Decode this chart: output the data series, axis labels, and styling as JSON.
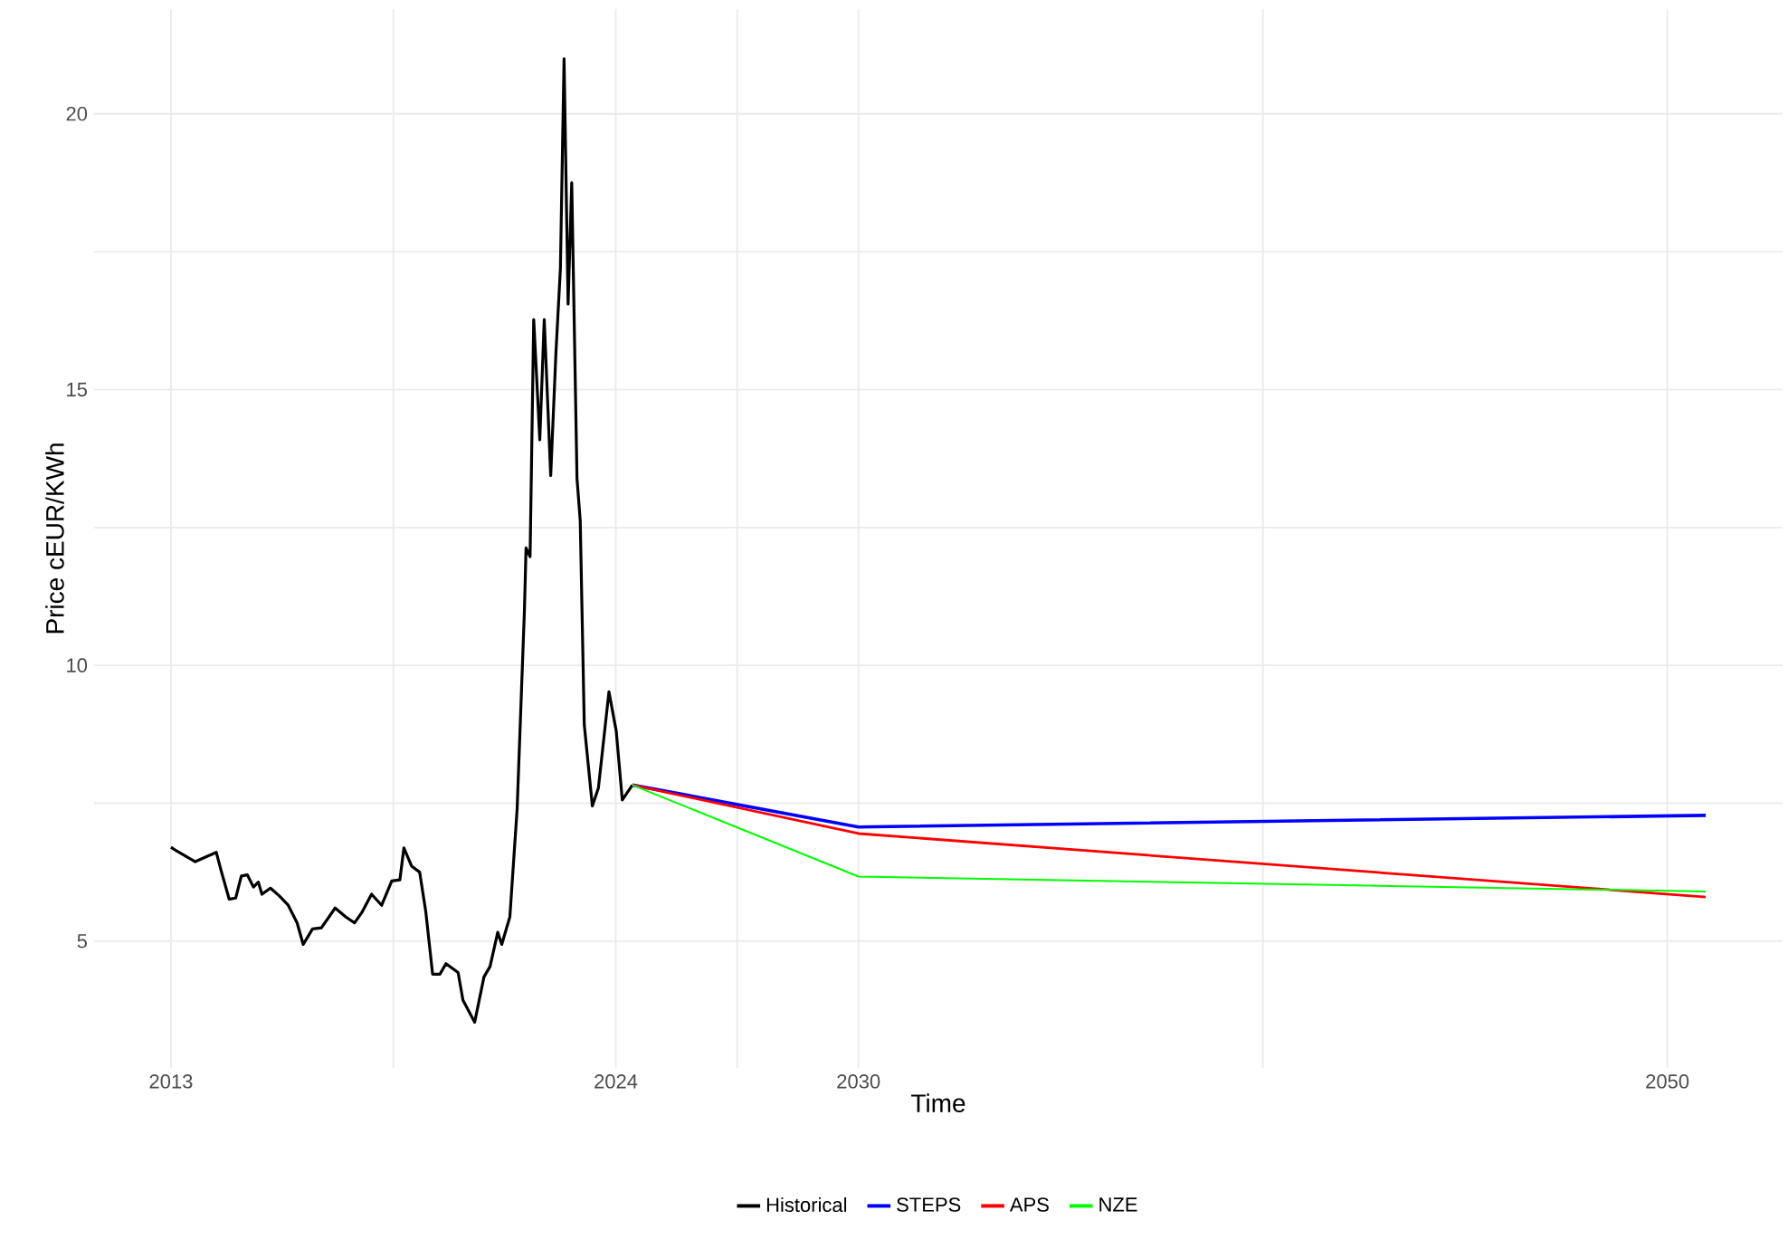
{
  "chart_data": {
    "type": "line",
    "xlabel": "Time",
    "ylabel": "Price cEUR/KWh",
    "xlim": [
      2011.1,
      2052.85
    ],
    "ylim": [
      2.7,
      21.9
    ],
    "xticks": [
      2013,
      {
        "value": 2018.5,
        "label": null
      },
      2024,
      {
        "value": 2027,
        "label": null
      },
      2030,
      {
        "value": 2040,
        "label": null
      },
      2050
    ],
    "yticks": [
      5,
      {
        "value": 7.5,
        "label": null
      },
      10,
      {
        "value": 12.5,
        "label": null
      },
      15,
      {
        "value": 17.5,
        "label": null
      },
      20
    ],
    "grid": true,
    "legend": "bottom",
    "line_style": "solid",
    "marker": "none",
    "series": [
      {
        "name": "Historical",
        "color": "#000000",
        "x": [
          2013.0,
          2013.15,
          2013.6,
          2014.12,
          2014.24,
          2014.44,
          2014.6,
          2014.74,
          2014.89,
          2015.04,
          2015.16,
          2015.25,
          2015.46,
          2015.68,
          2015.9,
          2016.12,
          2016.27,
          2016.5,
          2016.72,
          2017.06,
          2017.32,
          2017.54,
          2017.72,
          2017.96,
          2018.21,
          2018.46,
          2018.66,
          2018.76,
          2018.95,
          2019.15,
          2019.3,
          2019.47,
          2019.65,
          2019.8,
          2020.1,
          2020.22,
          2020.51,
          2020.74,
          2020.89,
          2021.08,
          2021.18,
          2021.38,
          2021.56,
          2021.74,
          2021.78,
          2021.88,
          2021.97,
          2022.12,
          2022.23,
          2022.39,
          2022.52,
          2022.63,
          2022.72,
          2022.82,
          2022.91,
          2023.04,
          2023.12,
          2023.22,
          2023.42,
          2023.57,
          2023.83,
          2024.01,
          2024.16,
          2024.41
        ],
        "values": [
          6.7,
          6.63,
          6.44,
          6.61,
          6.28,
          5.76,
          5.78,
          6.18,
          6.2,
          5.98,
          6.07,
          5.85,
          5.96,
          5.82,
          5.65,
          5.33,
          4.94,
          5.22,
          5.24,
          5.6,
          5.44,
          5.33,
          5.52,
          5.85,
          5.65,
          6.09,
          6.11,
          6.69,
          6.36,
          6.25,
          5.54,
          4.4,
          4.4,
          4.59,
          4.43,
          3.93,
          3.53,
          4.35,
          4.54,
          5.16,
          4.94,
          5.44,
          7.4,
          10.99,
          12.13,
          11.97,
          16.27,
          14.09,
          16.27,
          13.44,
          15.68,
          17.2,
          21.0,
          16.55,
          18.75,
          13.39,
          12.62,
          8.92,
          7.45,
          7.78,
          9.52,
          8.81,
          7.56,
          7.83
        ]
      },
      {
        "name": "STEPS",
        "color": "#0000ff",
        "x": [
          2024.41,
          2030,
          2050.95
        ],
        "values": [
          7.83,
          7.07,
          7.28
        ]
      },
      {
        "name": "APS",
        "color": "#ff0000",
        "x": [
          2024.41,
          2030,
          2050.95
        ],
        "values": [
          7.83,
          6.95,
          5.8
        ]
      },
      {
        "name": "NZE",
        "color": "#00ff00",
        "x": [
          2024.41,
          2030,
          2050.95
        ],
        "values": [
          7.83,
          6.17,
          5.9
        ]
      }
    ]
  }
}
